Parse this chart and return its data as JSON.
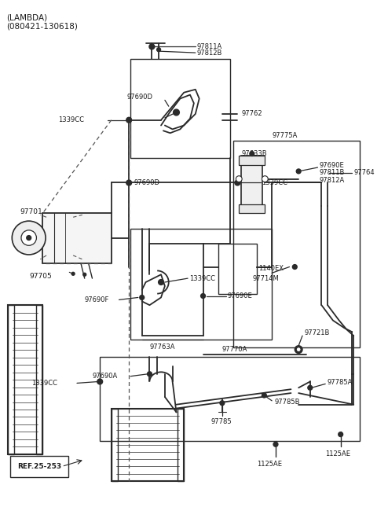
{
  "title_line1": "(LAMBDA)",
  "title_line2": "(080421-130618)",
  "ref_label": "REF.25-253",
  "bg_color": "#ffffff",
  "lc": "#2a2a2a",
  "figsize": [
    4.8,
    6.45
  ],
  "dpi": 100
}
